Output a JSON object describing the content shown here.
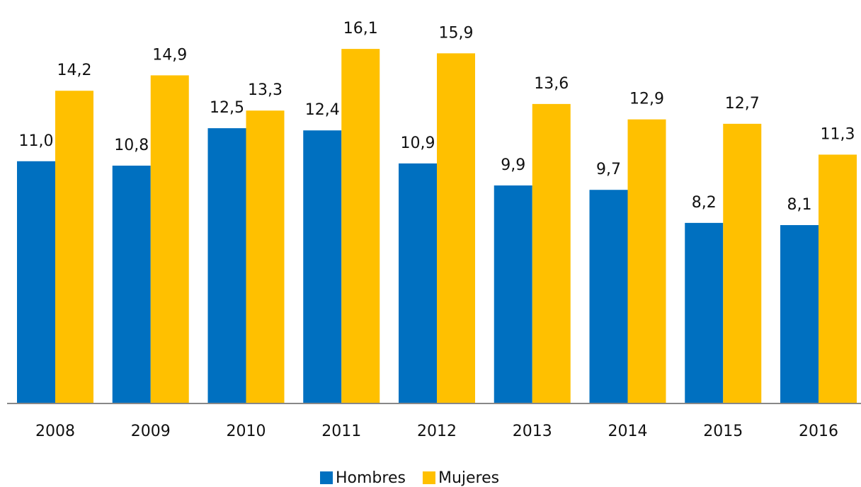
{
  "chart_data": {
    "type": "bar",
    "categories": [
      "2008",
      "2009",
      "2010",
      "2011",
      "2012",
      "2013",
      "2014",
      "2015",
      "2016"
    ],
    "series": [
      {
        "name": "Hombres",
        "color": "#0070c0",
        "values": [
          11.0,
          10.8,
          12.5,
          12.4,
          10.9,
          9.9,
          9.7,
          8.2,
          8.1
        ],
        "value_labels": [
          "11,0",
          "10,8",
          "12,5",
          "12,4",
          "10,9",
          "9,9",
          "9,7",
          "8,2",
          "8,1"
        ]
      },
      {
        "name": "Mujeres",
        "color": "#ffc000",
        "values": [
          14.2,
          14.9,
          13.3,
          16.1,
          15.9,
          13.6,
          12.9,
          12.7,
          11.3
        ],
        "value_labels": [
          "14,2",
          "14,9",
          "13,3",
          "16,1",
          "15,9",
          "13,6",
          "12,9",
          "12,7",
          "11,3"
        ]
      }
    ],
    "ylim": [
      0,
      18
    ],
    "legend": "bottom"
  }
}
